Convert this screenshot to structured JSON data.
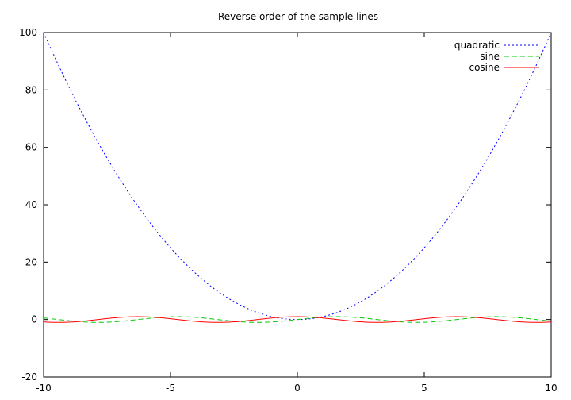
{
  "chart_data": {
    "type": "line",
    "title": "Reverse order of the sample lines",
    "xlabel": "",
    "ylabel": "",
    "xlim": [
      -10,
      10
    ],
    "ylim": [
      -20,
      100
    ],
    "xticks": [
      -10,
      -5,
      0,
      5,
      10
    ],
    "yticks": [
      -20,
      0,
      20,
      40,
      60,
      80,
      100
    ],
    "grid": false,
    "legend": "top-right",
    "series": [
      {
        "name": "quadratic",
        "expr": "x^2",
        "color": "#0000ff",
        "style": "dotted"
      },
      {
        "name": "sine",
        "expr": "sin(x)",
        "color": "#00cc00",
        "style": "dashed"
      },
      {
        "name": "cosine",
        "expr": "cos(x)",
        "color": "#ff0000",
        "style": "solid"
      }
    ]
  }
}
